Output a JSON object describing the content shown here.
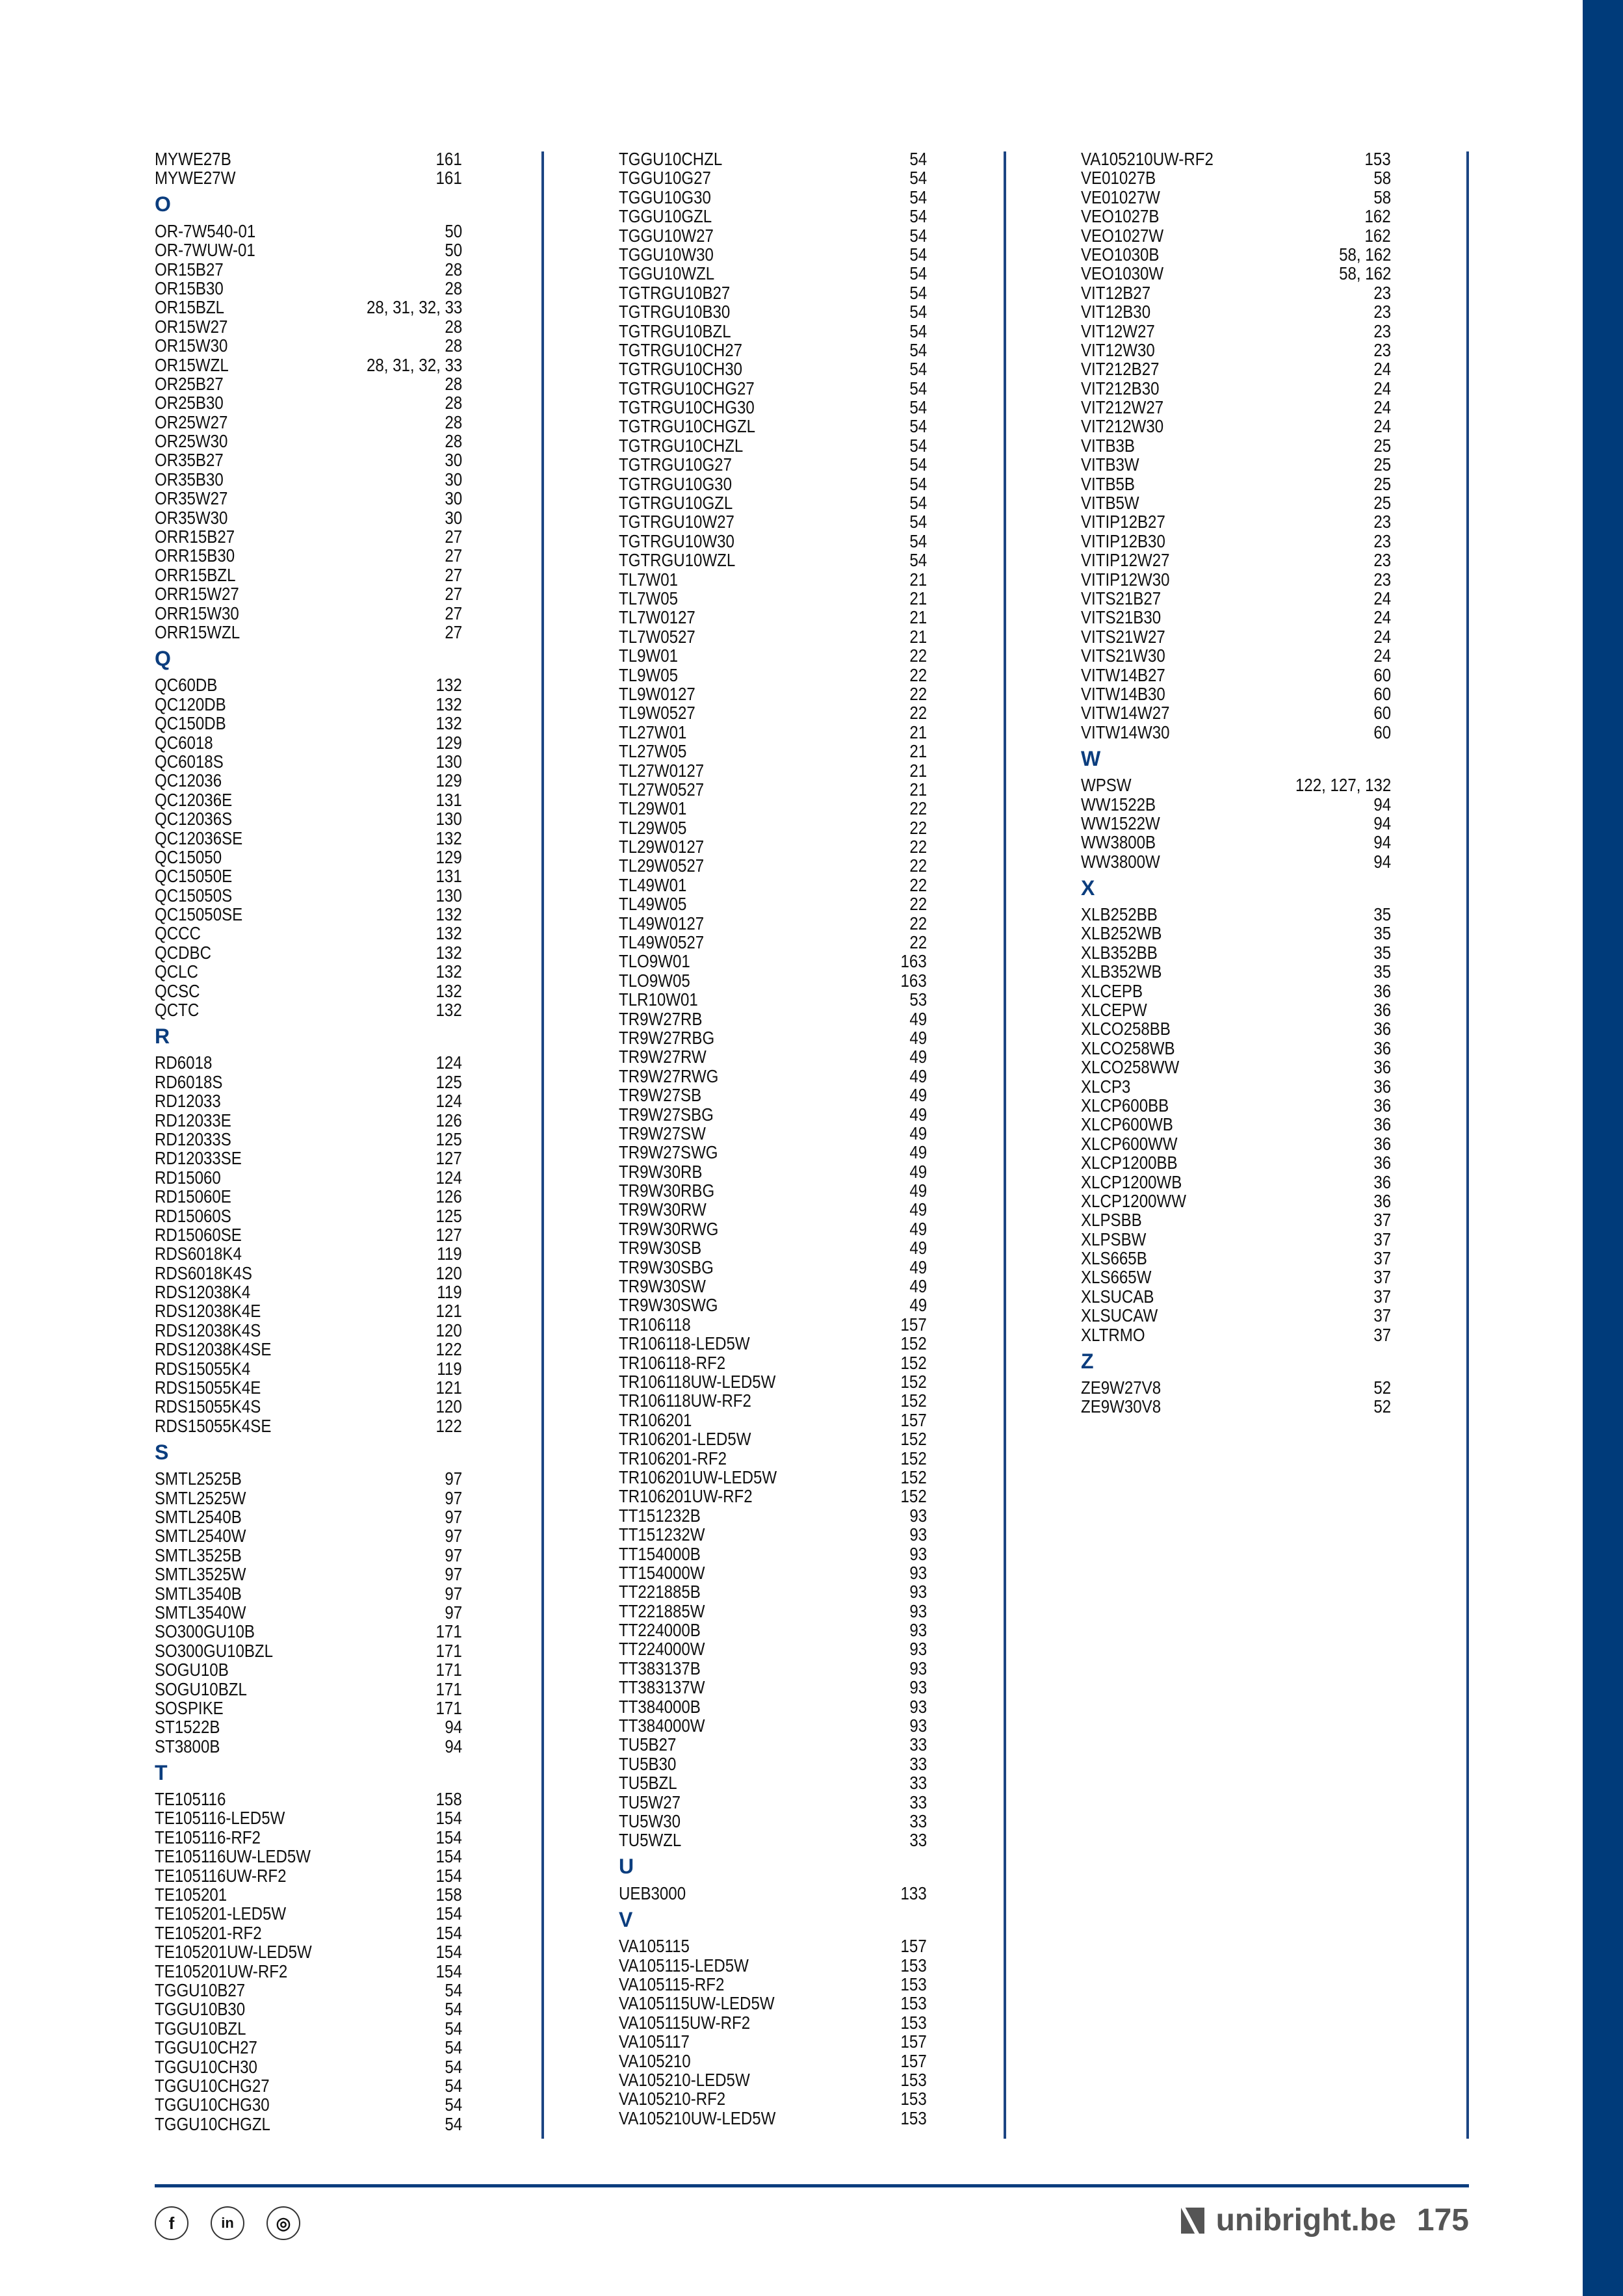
{
  "columns": [
    {
      "entries": [
        [
          "MYWE27B",
          "161"
        ],
        [
          "MYWE27W",
          "161"
        ],
        {
          "letter": "O"
        },
        [
          "OR-7W540-01",
          "50"
        ],
        [
          "OR-7WUW-01",
          "50"
        ],
        [
          "OR15B27",
          "28"
        ],
        [
          "OR15B30",
          "28"
        ],
        [
          "OR15BZL",
          "28, 31, 32, 33"
        ],
        [
          "OR15W27",
          "28"
        ],
        [
          "OR15W30",
          "28"
        ],
        [
          "OR15WZL",
          "28, 31, 32, 33"
        ],
        [
          "OR25B27",
          "28"
        ],
        [
          "OR25B30",
          "28"
        ],
        [
          "OR25W27",
          "28"
        ],
        [
          "OR25W30",
          "28"
        ],
        [
          "OR35B27",
          "30"
        ],
        [
          "OR35B30",
          "30"
        ],
        [
          "OR35W27",
          "30"
        ],
        [
          "OR35W30",
          "30"
        ],
        [
          "ORR15B27",
          "27"
        ],
        [
          "ORR15B30",
          "27"
        ],
        [
          "ORR15BZL",
          "27"
        ],
        [
          "ORR15W27",
          "27"
        ],
        [
          "ORR15W30",
          "27"
        ],
        [
          "ORR15WZL",
          "27"
        ],
        {
          "letter": "Q"
        },
        [
          "QC60DB",
          "132"
        ],
        [
          "QC120DB",
          "132"
        ],
        [
          "QC150DB",
          "132"
        ],
        [
          "QC6018",
          "129"
        ],
        [
          "QC6018S",
          "130"
        ],
        [
          "QC12036",
          "129"
        ],
        [
          "QC12036E",
          "131"
        ],
        [
          "QC12036S",
          "130"
        ],
        [
          "QC12036SE",
          "132"
        ],
        [
          "QC15050",
          "129"
        ],
        [
          "QC15050E",
          "131"
        ],
        [
          "QC15050S",
          "130"
        ],
        [
          "QC15050SE",
          "132"
        ],
        [
          "QCCC",
          "132"
        ],
        [
          "QCDBC",
          "132"
        ],
        [
          "QCLC",
          "132"
        ],
        [
          "QCSC",
          "132"
        ],
        [
          "QCTC",
          "132"
        ],
        {
          "letter": "R"
        },
        [
          "RD6018",
          "124"
        ],
        [
          "RD6018S",
          "125"
        ],
        [
          "RD12033",
          "124"
        ],
        [
          "RD12033E",
          "126"
        ],
        [
          "RD12033S",
          "125"
        ],
        [
          "RD12033SE",
          "127"
        ],
        [
          "RD15060",
          "124"
        ],
        [
          "RD15060E",
          "126"
        ],
        [
          "RD15060S",
          "125"
        ],
        [
          "RD15060SE",
          "127"
        ],
        [
          "RDS6018K4",
          "119"
        ],
        [
          "RDS6018K4S",
          "120"
        ],
        [
          "RDS12038K4",
          "119"
        ],
        [
          "RDS12038K4E",
          "121"
        ],
        [
          "RDS12038K4S",
          "120"
        ],
        [
          "RDS12038K4SE",
          "122"
        ],
        [
          "RDS15055K4",
          "119"
        ],
        [
          "RDS15055K4E",
          "121"
        ],
        [
          "RDS15055K4S",
          "120"
        ],
        [
          "RDS15055K4SE",
          "122"
        ],
        {
          "letter": "S"
        },
        [
          "SMTL2525B",
          "97"
        ],
        [
          "SMTL2525W",
          "97"
        ],
        [
          "SMTL2540B",
          "97"
        ],
        [
          "SMTL2540W",
          "97"
        ],
        [
          "SMTL3525B",
          "97"
        ],
        [
          "SMTL3525W",
          "97"
        ],
        [
          "SMTL3540B",
          "97"
        ],
        [
          "SMTL3540W",
          "97"
        ],
        [
          "SO300GU10B",
          "171"
        ],
        [
          "SO300GU10BZL",
          "171"
        ],
        [
          "SOGU10B",
          "171"
        ],
        [
          "SOGU10BZL",
          "171"
        ],
        [
          "SOSPIKE",
          "171"
        ],
        [
          "ST1522B",
          "94"
        ],
        [
          "ST3800B",
          "94"
        ],
        {
          "letter": "T"
        },
        [
          "TE105116",
          "158"
        ],
        [
          "TE105116-LED5W",
          "154"
        ],
        [
          "TE105116-RF2",
          "154"
        ],
        [
          "TE105116UW-LED5W",
          "154"
        ],
        [
          "TE105116UW-RF2",
          "154"
        ],
        [
          "TE105201",
          "158"
        ],
        [
          "TE105201-LED5W",
          "154"
        ],
        [
          "TE105201-RF2",
          "154"
        ],
        [
          "TE105201UW-LED5W",
          "154"
        ],
        [
          "TE105201UW-RF2",
          "154"
        ],
        [
          "TGGU10B27",
          "54"
        ],
        [
          "TGGU10B30",
          "54"
        ],
        [
          "TGGU10BZL",
          "54"
        ],
        [
          "TGGU10CH27",
          "54"
        ],
        [
          "TGGU10CH30",
          "54"
        ],
        [
          "TGGU10CHG27",
          "54"
        ],
        [
          "TGGU10CHG30",
          "54"
        ],
        [
          "TGGU10CHGZL",
          "54"
        ]
      ]
    },
    {
      "entries": [
        [
          "TGGU10CHZL",
          "54"
        ],
        [
          "TGGU10G27",
          "54"
        ],
        [
          "TGGU10G30",
          "54"
        ],
        [
          "TGGU10GZL",
          "54"
        ],
        [
          "TGGU10W27",
          "54"
        ],
        [
          "TGGU10W30",
          "54"
        ],
        [
          "TGGU10WZL",
          "54"
        ],
        [
          "TGTRGU10B27",
          "54"
        ],
        [
          "TGTRGU10B30",
          "54"
        ],
        [
          "TGTRGU10BZL",
          "54"
        ],
        [
          "TGTRGU10CH27",
          "54"
        ],
        [
          "TGTRGU10CH30",
          "54"
        ],
        [
          "TGTRGU10CHG27",
          "54"
        ],
        [
          "TGTRGU10CHG30",
          "54"
        ],
        [
          "TGTRGU10CHGZL",
          "54"
        ],
        [
          "TGTRGU10CHZL",
          "54"
        ],
        [
          "TGTRGU10G27",
          "54"
        ],
        [
          "TGTRGU10G30",
          "54"
        ],
        [
          "TGTRGU10GZL",
          "54"
        ],
        [
          "TGTRGU10W27",
          "54"
        ],
        [
          "TGTRGU10W30",
          "54"
        ],
        [
          "TGTRGU10WZL",
          "54"
        ],
        [
          "TL7W01",
          "21"
        ],
        [
          "TL7W05",
          "21"
        ],
        [
          "TL7W0127",
          "21"
        ],
        [
          "TL7W0527",
          "21"
        ],
        [
          "TL9W01",
          "22"
        ],
        [
          "TL9W05",
          "22"
        ],
        [
          "TL9W0127",
          "22"
        ],
        [
          "TL9W0527",
          "22"
        ],
        [
          "TL27W01",
          "21"
        ],
        [
          "TL27W05",
          "21"
        ],
        [
          "TL27W0127",
          "21"
        ],
        [
          "TL27W0527",
          "21"
        ],
        [
          "TL29W01",
          "22"
        ],
        [
          "TL29W05",
          "22"
        ],
        [
          "TL29W0127",
          "22"
        ],
        [
          "TL29W0527",
          "22"
        ],
        [
          "TL49W01",
          "22"
        ],
        [
          "TL49W05",
          "22"
        ],
        [
          "TL49W0127",
          "22"
        ],
        [
          "TL49W0527",
          "22"
        ],
        [
          "TLO9W01",
          "163"
        ],
        [
          "TLO9W05",
          "163"
        ],
        [
          "TLR10W01",
          "53"
        ],
        [
          "TR9W27RB",
          "49"
        ],
        [
          "TR9W27RBG",
          "49"
        ],
        [
          "TR9W27RW",
          "49"
        ],
        [
          "TR9W27RWG",
          "49"
        ],
        [
          "TR9W27SB",
          "49"
        ],
        [
          "TR9W27SBG",
          "49"
        ],
        [
          "TR9W27SW",
          "49"
        ],
        [
          "TR9W27SWG",
          "49"
        ],
        [
          "TR9W30RB",
          "49"
        ],
        [
          "TR9W30RBG",
          "49"
        ],
        [
          "TR9W30RW",
          "49"
        ],
        [
          "TR9W30RWG",
          "49"
        ],
        [
          "TR9W30SB",
          "49"
        ],
        [
          "TR9W30SBG",
          "49"
        ],
        [
          "TR9W30SW",
          "49"
        ],
        [
          "TR9W30SWG",
          "49"
        ],
        [
          "TR106118",
          "157"
        ],
        [
          "TR106118-LED5W",
          "152"
        ],
        [
          "TR106118-RF2",
          "152"
        ],
        [
          "TR106118UW-LED5W",
          "152"
        ],
        [
          "TR106118UW-RF2",
          "152"
        ],
        [
          "TR106201",
          "157"
        ],
        [
          "TR106201-LED5W",
          "152"
        ],
        [
          "TR106201-RF2",
          "152"
        ],
        [
          "TR106201UW-LED5W",
          "152"
        ],
        [
          "TR106201UW-RF2",
          "152"
        ],
        [
          "TT151232B",
          "93"
        ],
        [
          "TT151232W",
          "93"
        ],
        [
          "TT154000B",
          "93"
        ],
        [
          "TT154000W",
          "93"
        ],
        [
          "TT221885B",
          "93"
        ],
        [
          "TT221885W",
          "93"
        ],
        [
          "TT224000B",
          "93"
        ],
        [
          "TT224000W",
          "93"
        ],
        [
          "TT383137B",
          "93"
        ],
        [
          "TT383137W",
          "93"
        ],
        [
          "TT384000B",
          "93"
        ],
        [
          "TT384000W",
          "93"
        ],
        [
          "TU5B27",
          "33"
        ],
        [
          "TU5B30",
          "33"
        ],
        [
          "TU5BZL",
          "33"
        ],
        [
          "TU5W27",
          "33"
        ],
        [
          "TU5W30",
          "33"
        ],
        [
          "TU5WZL",
          "33"
        ],
        {
          "letter": "U"
        },
        [
          "UEB3000",
          "133"
        ],
        {
          "letter": "V"
        },
        [
          "VA105115",
          "157"
        ],
        [
          "VA105115-LED5W",
          "153"
        ],
        [
          "VA105115-RF2",
          "153"
        ],
        [
          "VA105115UW-LED5W",
          "153"
        ],
        [
          "VA105115UW-RF2",
          "153"
        ],
        [
          "VA105117",
          "157"
        ],
        [
          "VA105210",
          "157"
        ],
        [
          "VA105210-LED5W",
          "153"
        ],
        [
          "VA105210-RF2",
          "153"
        ],
        [
          "VA105210UW-LED5W",
          "153"
        ]
      ]
    },
    {
      "entries": [
        [
          "VA105210UW-RF2",
          "153"
        ],
        [
          "VE01027B",
          "58"
        ],
        [
          "VE01027W",
          "58"
        ],
        [
          "VEO1027B",
          "162"
        ],
        [
          "VEO1027W",
          "162"
        ],
        [
          "VEO1030B",
          "58, 162"
        ],
        [
          "VEO1030W",
          "58, 162"
        ],
        [
          "VIT12B27",
          "23"
        ],
        [
          "VIT12B30",
          "23"
        ],
        [
          "VIT12W27",
          "23"
        ],
        [
          "VIT12W30",
          "23"
        ],
        [
          "VIT212B27",
          "24"
        ],
        [
          "VIT212B30",
          "24"
        ],
        [
          "VIT212W27",
          "24"
        ],
        [
          "VIT212W30",
          "24"
        ],
        [
          "VITB3B",
          "25"
        ],
        [
          "VITB3W",
          "25"
        ],
        [
          "VITB5B",
          "25"
        ],
        [
          "VITB5W",
          "25"
        ],
        [
          "VITIP12B27",
          "23"
        ],
        [
          "VITIP12B30",
          "23"
        ],
        [
          "VITIP12W27",
          "23"
        ],
        [
          "VITIP12W30",
          "23"
        ],
        [
          "VITS21B27",
          "24"
        ],
        [
          "VITS21B30",
          "24"
        ],
        [
          "VITS21W27",
          "24"
        ],
        [
          "VITS21W30",
          "24"
        ],
        [
          "VITW14B27",
          "60"
        ],
        [
          "VITW14B30",
          "60"
        ],
        [
          "VITW14W27",
          "60"
        ],
        [
          "VITW14W30",
          "60"
        ],
        {
          "letter": "W"
        },
        [
          "WPSW",
          "122, 127, 132"
        ],
        [
          "WW1522B",
          "94"
        ],
        [
          "WW1522W",
          "94"
        ],
        [
          "WW3800B",
          "94"
        ],
        [
          "WW3800W",
          "94"
        ],
        {
          "letter": "X"
        },
        [
          "XLB252BB",
          "35"
        ],
        [
          "XLB252WB",
          "35"
        ],
        [
          "XLB352BB",
          "35"
        ],
        [
          "XLB352WB",
          "35"
        ],
        [
          "XLCEPB",
          "36"
        ],
        [
          "XLCEPW",
          "36"
        ],
        [
          "XLCO258BB",
          "36"
        ],
        [
          "XLCO258WB",
          "36"
        ],
        [
          "XLCO258WW",
          "36"
        ],
        [
          "XLCP3",
          "36"
        ],
        [
          "XLCP600BB",
          "36"
        ],
        [
          "XLCP600WB",
          "36"
        ],
        [
          "XLCP600WW",
          "36"
        ],
        [
          "XLCP1200BB",
          "36"
        ],
        [
          "XLCP1200WB",
          "36"
        ],
        [
          "XLCP1200WW",
          "36"
        ],
        [
          "XLPSBB",
          "37"
        ],
        [
          "XLPSBW",
          "37"
        ],
        [
          "XLS665B",
          "37"
        ],
        [
          "XLS665W",
          "37"
        ],
        [
          "XLSUCAB",
          "37"
        ],
        [
          "XLSUCAW",
          "37"
        ],
        [
          "XLTRMO",
          "37"
        ],
        {
          "letter": "Z"
        },
        [
          "ZE9W27V8",
          "52"
        ],
        [
          "ZE9W30V8",
          "52"
        ]
      ]
    }
  ],
  "footer": {
    "social": [
      {
        "icon": "facebook-icon",
        "glyph": "f"
      },
      {
        "icon": "linkedin-icon",
        "glyph": "in"
      },
      {
        "icon": "instagram-icon",
        "glyph": "◎"
      }
    ],
    "brand": "unibright.be",
    "page_number": "175"
  },
  "colors": {
    "accent": "#0b3d7e",
    "sidebar": "#003b7a",
    "brand_text": "#555555"
  }
}
